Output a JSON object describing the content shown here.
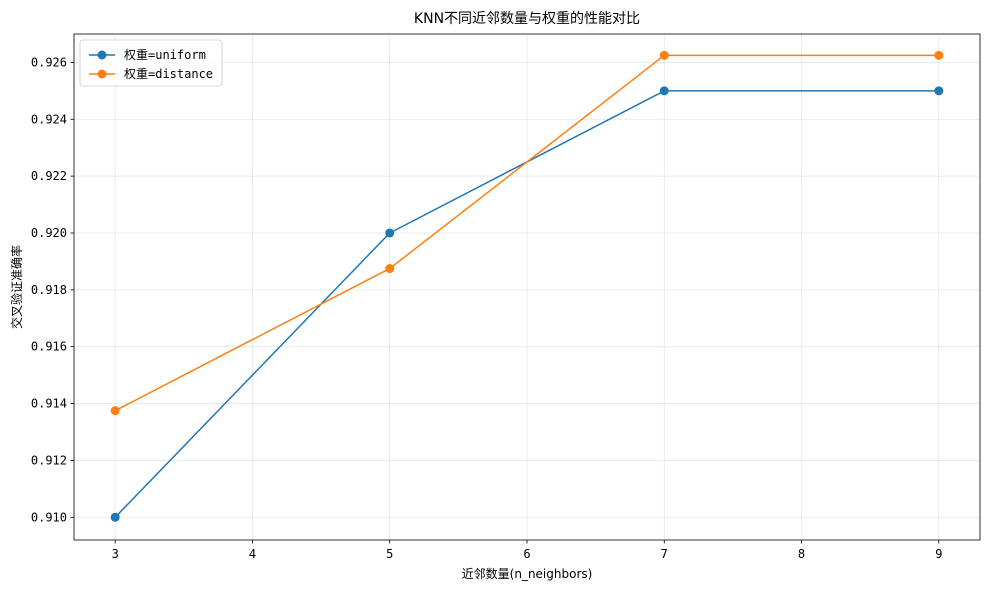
{
  "chart_data": {
    "type": "line",
    "title": "KNN不同近邻数量与权重的性能对比",
    "xlabel": "近邻数量(n_neighbors)",
    "ylabel": "交叉验证准确率",
    "x": [
      3,
      5,
      7,
      9
    ],
    "series": [
      {
        "name": "权重=uniform",
        "color": "#1f77b4",
        "values": [
          0.91,
          0.92,
          0.925,
          0.925
        ]
      },
      {
        "name": "权重=distance",
        "color": "#ff7f0e",
        "values": [
          0.91375,
          0.91875,
          0.92625,
          0.92625
        ]
      }
    ],
    "xlim": [
      2.7,
      9.3
    ],
    "ylim": [
      0.9092,
      0.927
    ],
    "xticks": [
      "3",
      "4",
      "5",
      "6",
      "7",
      "8",
      "9"
    ],
    "yticks": [
      "0.910",
      "0.912",
      "0.914",
      "0.916",
      "0.918",
      "0.920",
      "0.922",
      "0.924",
      "0.926"
    ],
    "grid": true,
    "legend_position": "top-left",
    "marker": "circle"
  }
}
